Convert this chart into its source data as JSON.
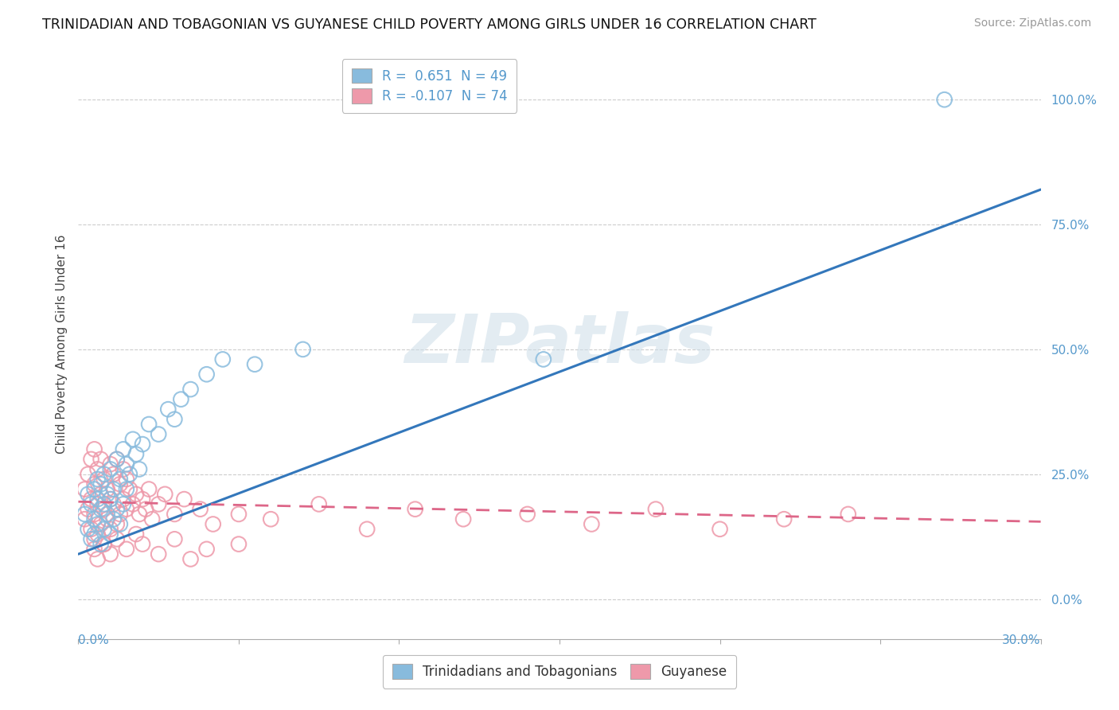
{
  "title": "TRINIDADIAN AND TOBAGONIAN VS GUYANESE CHILD POVERTY AMONG GIRLS UNDER 16 CORRELATION CHART",
  "source": "Source: ZipAtlas.com",
  "ylabel": "Child Poverty Among Girls Under 16",
  "ytick_labels": [
    "0.0%",
    "25.0%",
    "50.0%",
    "75.0%",
    "100.0%"
  ],
  "ytick_values": [
    0.0,
    0.25,
    0.5,
    0.75,
    1.0
  ],
  "xmin": 0.0,
  "xmax": 0.3,
  "ymin": -0.08,
  "ymax": 1.1,
  "legend_blue_label": "Trinidadians and Tobagonians",
  "legend_pink_label": "Guyanese",
  "R_blue": "0.651",
  "N_blue": "49",
  "R_pink": "-0.107",
  "N_pink": "74",
  "blue_color": "#88bbdd",
  "pink_color": "#ee99aa",
  "blue_line_color": "#3377bb",
  "pink_line_color": "#dd6688",
  "watermark": "ZIPatlas",
  "accent_color": "#5599cc",
  "blue_line_x0": 0.0,
  "blue_line_y0": 0.09,
  "blue_line_x1": 0.3,
  "blue_line_y1": 0.82,
  "pink_line_x0": 0.0,
  "pink_line_y0": 0.195,
  "pink_line_x1": 0.3,
  "pink_line_y1": 0.155,
  "blue_scatter_x": [
    0.002,
    0.003,
    0.003,
    0.004,
    0.004,
    0.005,
    0.005,
    0.005,
    0.006,
    0.006,
    0.006,
    0.007,
    0.007,
    0.007,
    0.008,
    0.008,
    0.008,
    0.009,
    0.009,
    0.01,
    0.01,
    0.01,
    0.011,
    0.011,
    0.012,
    0.012,
    0.013,
    0.013,
    0.014,
    0.014,
    0.015,
    0.015,
    0.016,
    0.017,
    0.018,
    0.019,
    0.02,
    0.022,
    0.025,
    0.028,
    0.03,
    0.032,
    0.035,
    0.04,
    0.045,
    0.055,
    0.07,
    0.145,
    0.27
  ],
  "blue_scatter_y": [
    0.17,
    0.21,
    0.14,
    0.19,
    0.12,
    0.22,
    0.16,
    0.13,
    0.2,
    0.24,
    0.15,
    0.18,
    0.23,
    0.11,
    0.25,
    0.19,
    0.14,
    0.21,
    0.17,
    0.26,
    0.2,
    0.13,
    0.22,
    0.16,
    0.28,
    0.18,
    0.24,
    0.15,
    0.3,
    0.19,
    0.27,
    0.22,
    0.25,
    0.32,
    0.29,
    0.26,
    0.31,
    0.35,
    0.33,
    0.38,
    0.36,
    0.4,
    0.42,
    0.45,
    0.48,
    0.47,
    0.5,
    0.48,
    1.0
  ],
  "pink_scatter_x": [
    0.002,
    0.002,
    0.003,
    0.003,
    0.004,
    0.004,
    0.004,
    0.005,
    0.005,
    0.005,
    0.005,
    0.006,
    0.006,
    0.006,
    0.007,
    0.007,
    0.007,
    0.008,
    0.008,
    0.008,
    0.009,
    0.009,
    0.01,
    0.01,
    0.01,
    0.011,
    0.011,
    0.012,
    0.012,
    0.013,
    0.013,
    0.014,
    0.014,
    0.015,
    0.015,
    0.016,
    0.017,
    0.018,
    0.019,
    0.02,
    0.021,
    0.022,
    0.023,
    0.025,
    0.027,
    0.03,
    0.033,
    0.038,
    0.042,
    0.05,
    0.06,
    0.075,
    0.09,
    0.105,
    0.12,
    0.14,
    0.16,
    0.18,
    0.2,
    0.22,
    0.24,
    0.005,
    0.006,
    0.008,
    0.01,
    0.012,
    0.015,
    0.018,
    0.02,
    0.025,
    0.03,
    0.035,
    0.04,
    0.05
  ],
  "pink_scatter_y": [
    0.22,
    0.16,
    0.25,
    0.18,
    0.28,
    0.2,
    0.14,
    0.3,
    0.23,
    0.17,
    0.12,
    0.26,
    0.19,
    0.13,
    0.28,
    0.21,
    0.15,
    0.24,
    0.18,
    0.11,
    0.22,
    0.16,
    0.27,
    0.2,
    0.14,
    0.25,
    0.19,
    0.28,
    0.15,
    0.23,
    0.17,
    0.26,
    0.2,
    0.24,
    0.18,
    0.22,
    0.19,
    0.21,
    0.17,
    0.2,
    0.18,
    0.22,
    0.16,
    0.19,
    0.21,
    0.17,
    0.2,
    0.18,
    0.15,
    0.17,
    0.16,
    0.19,
    0.14,
    0.18,
    0.16,
    0.17,
    0.15,
    0.18,
    0.14,
    0.16,
    0.17,
    0.1,
    0.08,
    0.11,
    0.09,
    0.12,
    0.1,
    0.13,
    0.11,
    0.09,
    0.12,
    0.08,
    0.1,
    0.11
  ]
}
